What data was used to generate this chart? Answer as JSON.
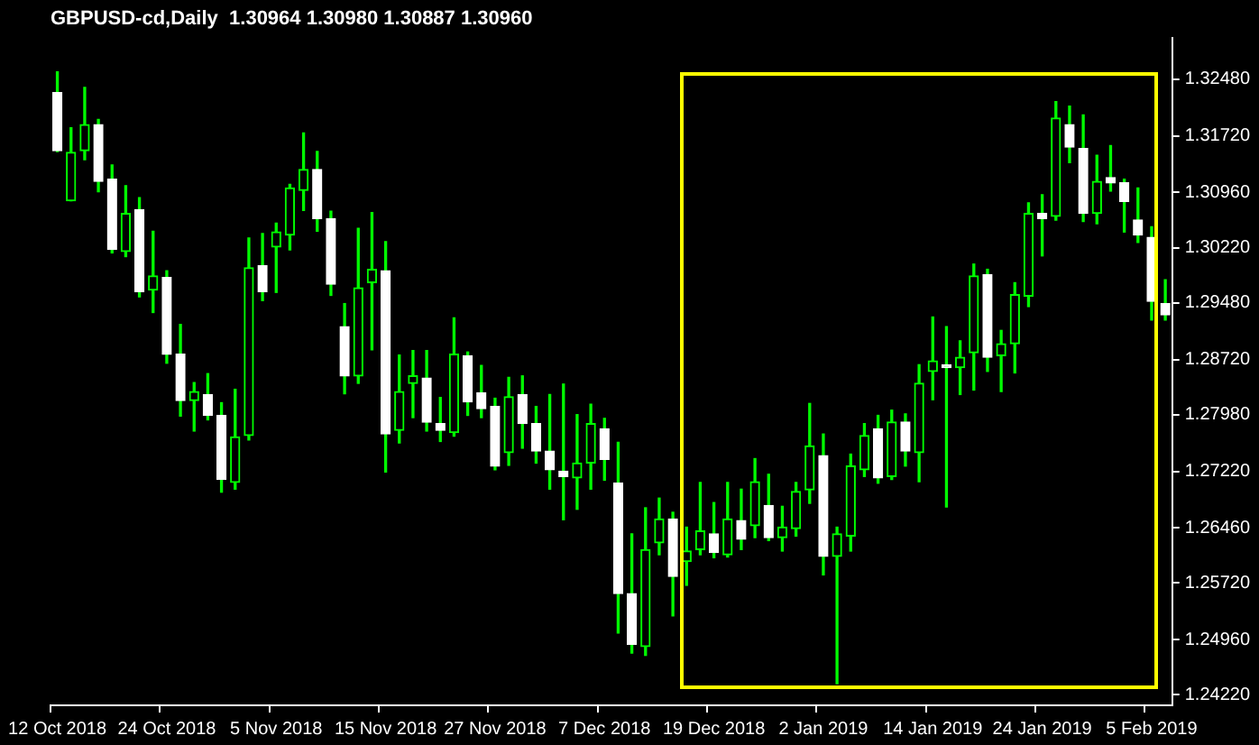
{
  "chart_data": {
    "type": "candlestick",
    "title": "GBPUSD-cd,Daily  1.30964 1.30980 1.30887 1.30960",
    "categories": [
      "12 Oct 2018",
      null,
      null,
      null,
      null,
      null,
      null,
      null,
      "24 Oct 2018",
      null,
      null,
      null,
      null,
      null,
      null,
      null,
      "5 Nov 2018",
      null,
      null,
      null,
      null,
      null,
      null,
      null,
      "15 Nov 2018",
      null,
      null,
      null,
      null,
      null,
      null,
      null,
      "27 Nov 2018",
      null,
      null,
      null,
      null,
      null,
      null,
      null,
      "7 Dec 2018",
      null,
      null,
      null,
      null,
      null,
      null,
      null,
      "19 Dec 2018",
      null,
      null,
      null,
      null,
      null,
      null,
      null,
      "2 Jan 2019",
      null,
      null,
      null,
      null,
      null,
      null,
      null,
      "14 Jan 2019",
      null,
      null,
      null,
      null,
      null,
      null,
      null,
      "24 Jan 2019",
      null,
      null,
      null,
      null,
      null,
      null,
      null,
      "5 Feb 2019",
      null
    ],
    "ohlc": [
      [
        1.323,
        1.3258,
        1.3151,
        1.3152
      ],
      [
        1.3085,
        1.3183,
        1.3085,
        1.315
      ],
      [
        1.3152,
        1.3237,
        1.314,
        1.3187
      ],
      [
        1.3187,
        1.3194,
        1.3097,
        1.3111
      ],
      [
        1.3114,
        1.3133,
        1.3015,
        1.302
      ],
      [
        1.3017,
        1.3105,
        1.301,
        1.3068
      ],
      [
        1.3073,
        1.3089,
        1.2956,
        1.2963
      ],
      [
        1.2965,
        1.3044,
        1.2935,
        1.2984
      ],
      [
        1.2982,
        1.2991,
        1.2867,
        1.2879
      ],
      [
        1.2879,
        1.2919,
        1.2796,
        1.2817
      ],
      [
        1.2817,
        1.2841,
        1.2776,
        1.2829
      ],
      [
        1.2825,
        1.2853,
        1.2791,
        1.2797
      ],
      [
        1.2797,
        1.2814,
        1.2694,
        1.2711
      ],
      [
        1.2707,
        1.2832,
        1.2698,
        1.2768
      ],
      [
        1.277,
        1.3035,
        1.2764,
        1.2995
      ],
      [
        1.2998,
        1.3041,
        1.2951,
        1.2963
      ],
      [
        1.3023,
        1.3055,
        1.2962,
        1.3043
      ],
      [
        1.3039,
        1.3107,
        1.3019,
        1.3102
      ],
      [
        1.3099,
        1.3176,
        1.3072,
        1.3127
      ],
      [
        1.3127,
        1.3151,
        1.3044,
        1.3061
      ],
      [
        1.3061,
        1.3071,
        1.2958,
        1.2973
      ],
      [
        1.2916,
        1.2947,
        1.2826,
        1.285
      ],
      [
        1.285,
        1.3048,
        1.284,
        1.2968
      ],
      [
        1.2975,
        1.3069,
        1.2885,
        1.2993
      ],
      [
        1.2991,
        1.303,
        1.2721,
        1.2772
      ],
      [
        1.2777,
        1.2878,
        1.276,
        1.2829
      ],
      [
        1.284,
        1.2884,
        1.2794,
        1.285
      ],
      [
        1.2847,
        1.2884,
        1.2776,
        1.2788
      ],
      [
        1.2786,
        1.2821,
        1.2762,
        1.2777
      ],
      [
        1.2774,
        1.2928,
        1.2769,
        1.2879
      ],
      [
        1.2877,
        1.2882,
        1.2797,
        1.2815
      ],
      [
        1.2827,
        1.2864,
        1.2794,
        1.2806
      ],
      [
        1.2809,
        1.282,
        1.2724,
        1.2729
      ],
      [
        1.2747,
        1.2848,
        1.273,
        1.2822
      ],
      [
        1.2825,
        1.285,
        1.2753,
        1.2786
      ],
      [
        1.2786,
        1.2809,
        1.2733,
        1.2749
      ],
      [
        1.2749,
        1.2825,
        1.2698,
        1.2724
      ],
      [
        1.2722,
        1.2839,
        1.2657,
        1.2715
      ],
      [
        1.2713,
        1.2798,
        1.2671,
        1.2733
      ],
      [
        1.2733,
        1.2812,
        1.2698,
        1.2786
      ],
      [
        1.2779,
        1.2793,
        1.271,
        1.2738
      ],
      [
        1.2706,
        1.2761,
        1.2505,
        1.2558
      ],
      [
        1.2558,
        1.2638,
        1.2478,
        1.249
      ],
      [
        1.2487,
        1.2673,
        1.2475,
        1.2617
      ],
      [
        1.2626,
        1.2686,
        1.261,
        1.2658
      ],
      [
        1.2658,
        1.2667,
        1.2528,
        1.2581
      ],
      [
        1.2601,
        1.2647,
        1.2569,
        1.2615
      ],
      [
        1.2617,
        1.2707,
        1.261,
        1.2642
      ],
      [
        1.2638,
        1.268,
        1.2606,
        1.2613
      ],
      [
        1.261,
        1.2707,
        1.2607,
        1.2658
      ],
      [
        1.2656,
        1.2698,
        1.2617,
        1.2631
      ],
      [
        1.2649,
        1.2739,
        1.2633,
        1.2708
      ],
      [
        1.2676,
        1.2718,
        1.2629,
        1.2633
      ],
      [
        1.2633,
        1.2675,
        1.2615,
        1.2647
      ],
      [
        1.2645,
        1.2707,
        1.2635,
        1.2695
      ],
      [
        1.2697,
        1.2813,
        1.2679,
        1.2756
      ],
      [
        1.2743,
        1.2772,
        1.2583,
        1.2608
      ],
      [
        1.2608,
        1.2647,
        1.2437,
        1.2638
      ],
      [
        1.2635,
        1.2745,
        1.2615,
        1.2729
      ],
      [
        1.2724,
        1.2786,
        1.2715,
        1.277
      ],
      [
        1.2779,
        1.2797,
        1.2706,
        1.2713
      ],
      [
        1.2715,
        1.2804,
        1.2711,
        1.2788
      ],
      [
        1.2788,
        1.2799,
        1.2729,
        1.2749
      ],
      [
        1.2747,
        1.2865,
        1.2708,
        1.284
      ],
      [
        1.2856,
        1.2929,
        1.2818,
        1.287
      ],
      [
        1.2865,
        1.2916,
        1.2674,
        1.2861
      ],
      [
        1.2861,
        1.2897,
        1.2825,
        1.2875
      ],
      [
        1.2881,
        1.3,
        1.2831,
        1.2984
      ],
      [
        1.2986,
        1.2993,
        1.2856,
        1.2875
      ],
      [
        1.2877,
        1.2911,
        1.2829,
        1.2893
      ],
      [
        1.2893,
        1.2975,
        1.2854,
        1.2959
      ],
      [
        1.2957,
        1.3082,
        1.2943,
        1.3068
      ],
      [
        1.3068,
        1.3093,
        1.3011,
        1.3061
      ],
      [
        1.3064,
        1.3218,
        1.3059,
        1.3196
      ],
      [
        1.3187,
        1.3212,
        1.3136,
        1.3157
      ],
      [
        1.3155,
        1.32,
        1.3057,
        1.3068
      ],
      [
        1.3068,
        1.3146,
        1.3054,
        1.3111
      ],
      [
        1.3116,
        1.3159,
        1.3098,
        1.3109
      ],
      [
        1.3109,
        1.3114,
        1.3043,
        1.3084
      ],
      [
        1.3059,
        1.3102,
        1.3029,
        1.3039
      ],
      [
        1.3036,
        1.305,
        1.2925,
        1.295
      ],
      [
        1.2947,
        1.2979,
        1.2925,
        1.2932
      ]
    ],
    "color": "#00ff00",
    "colors": [
      "#ffffff",
      "#00ff00",
      "#00ff00",
      "#ffffff",
      "#ffffff",
      "#00ff00",
      "#ffffff",
      "#00ff00",
      "#ffffff",
      "#ffffff",
      "#00ff00",
      "#ffffff",
      "#ffffff",
      "#00ff00",
      "#00ff00",
      "#ffffff",
      "#00ff00",
      "#00ff00",
      "#00ff00",
      "#ffffff",
      "#ffffff",
      "#ffffff",
      "#00ff00",
      "#00ff00",
      "#ffffff",
      "#00ff00",
      "#00ff00",
      "#ffffff",
      "#ffffff",
      "#00ff00",
      "#ffffff",
      "#ffffff",
      "#ffffff",
      "#00ff00",
      "#ffffff",
      "#ffffff",
      "#ffffff",
      "#ffffff",
      "#00ff00",
      "#00ff00",
      "#ffffff",
      "#ffffff",
      "#ffffff",
      "#00ff00",
      "#00ff00",
      "#ffffff",
      "#00ff00",
      "#00ff00",
      "#ffffff",
      "#00ff00",
      "#ffffff",
      "#00ff00",
      "#ffffff",
      "#00ff00",
      "#00ff00",
      "#00ff00",
      "#ffffff",
      "#00ff00",
      "#00ff00",
      "#00ff00",
      "#ffffff",
      "#00ff00",
      "#ffffff",
      "#00ff00",
      "#00ff00",
      "#ffffff",
      "#00ff00",
      "#00ff00",
      "#ffffff",
      "#00ff00",
      "#00ff00",
      "#00ff00",
      "#ffffff",
      "#00ff00",
      "#ffffff",
      "#ffffff",
      "#00ff00",
      "#ffffff",
      "#ffffff",
      "#ffffff",
      "#ffffff",
      "#ffffff"
    ],
    "ylim": [
      1.2408,
      1.3303
    ],
    "yticks": [
      {
        "value": 1.2422,
        "label": "1.24220"
      },
      {
        "value": 1.2496,
        "label": "1.24960"
      },
      {
        "value": 1.2572,
        "label": "1.25720"
      },
      {
        "value": 1.2646,
        "label": "1.26460"
      },
      {
        "value": 1.2722,
        "label": "1.27220"
      },
      {
        "value": 1.2798,
        "label": "1.27980"
      },
      {
        "value": 1.2872,
        "label": "1.28720"
      },
      {
        "value": 1.2948,
        "label": "1.29480"
      },
      {
        "value": 1.3022,
        "label": "1.30220"
      },
      {
        "value": 1.3096,
        "label": "1.30960"
      },
      {
        "value": 1.3172,
        "label": "1.31720"
      },
      {
        "value": 1.3248,
        "label": "1.32480"
      }
    ],
    "grid": false,
    "legend": false
  }
}
